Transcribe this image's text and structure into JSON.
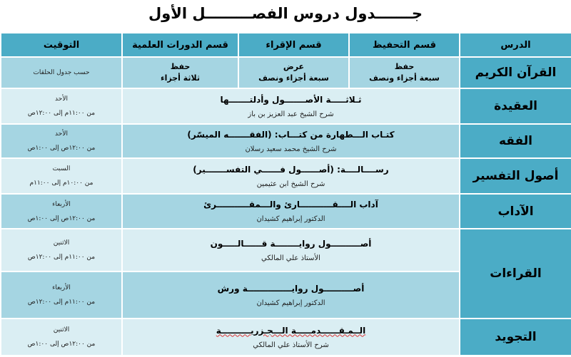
{
  "title": "جـــــــدول دروس الفصـــــــــل الأول",
  "headers": {
    "lesson": "الدرس",
    "hifz": "قسم التحفيظ",
    "iqraa": "قسم الإقراء",
    "dawrat": "قسم الدورات العلمية",
    "timing": "التوقيت"
  },
  "quran": {
    "lesson": "القرآن الكريم",
    "hifz": [
      "حفظ",
      "سبعة أجزاء ونصف"
    ],
    "iqraa": [
      "عرض",
      "سبعة أجزاء ونصف"
    ],
    "dawrat": [
      "حفظ",
      "ثلاثة أجزاء"
    ],
    "timing": "حسب جدول الحلقات"
  },
  "rows": [
    {
      "lesson": "العقيدة",
      "course": "ثـلاثـــــة الأصـــــــول وأدلتـــــــها",
      "teacher": "شرح الشيخ عبد العزيز بن باز",
      "day": "الأحد",
      "time": "من ١١:٠٠م إلى ١٢:٠٠ص"
    },
    {
      "lesson": "الفقه",
      "course": "كتـاب الـــطهارة من كتـــاب: (الفقـــــــه الميسّر)",
      "teacher": "شرح الشيخ محمد سعيد رسلان",
      "day": "الأحد",
      "time": "من ١٢:٠٠ص إلى ١:٠٠ص"
    },
    {
      "lesson": "أصول التفسير",
      "course": "رســــالــــة: (أصــــــول فــــــي التفســـــــير)",
      "teacher": "شرح الشيخ ابن عثيمين",
      "day": "السبت",
      "time": "من ١٠:٠٠م إلى ١١:٠٠م"
    },
    {
      "lesson": "الآداب",
      "course": "آداب الــــقـــــــــــارئ والـــمقـــــــــــرئ",
      "teacher": "الدكتور إبراهيم كشيدان",
      "day": "الأربعاء",
      "time": "من ١٢:٠٠ص إلى ١:٠٠ص"
    },
    {
      "lesson": "القراءات",
      "course": "أصــــــــــول روايــــــــة قــــــالـــــون",
      "teacher": "الأستاذ علي المالكي",
      "day": "الاثنين",
      "time": "من ١١:٠٠م إلى ١٢:٠٠ص"
    },
    {
      "course": "أصــــــــــول روايـــــــــــــــة ورش",
      "teacher": "الدكتور إبراهيم كشيدان",
      "day": "الأربعاء",
      "time": "من ١١:٠٠م إلى ١٢:٠٠ص"
    },
    {
      "lesson": "التجويد",
      "course": "الــمـقــــــدمـــــة الـــجـزريــــــــــة",
      "teacher": "شرح الأستاذ علي المالكي",
      "day": "الاثنين",
      "time": "من ١٢:٠٠ص إلى ١:٠٠ص"
    }
  ]
}
